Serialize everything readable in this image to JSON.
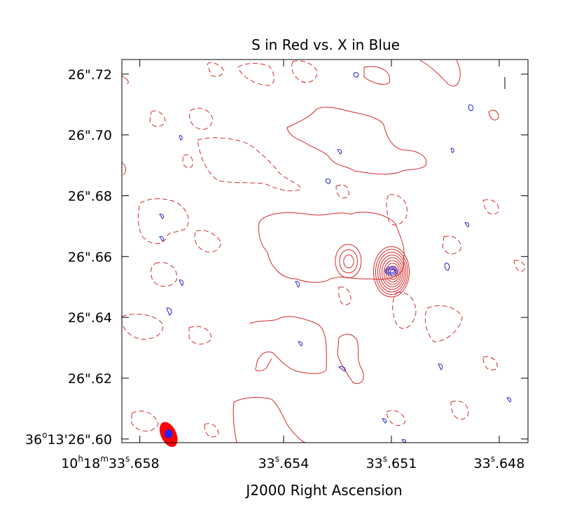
{
  "chart_data": {
    "type": "contour",
    "title": "S in Red vs. X in Blue",
    "xlabel": "J2000 Right Ascension",
    "ylabel": "",
    "x_ticks": [
      {
        "value": 33.658,
        "h": "10",
        "m": "18",
        "s": "33",
        "frac": ".658",
        "full": true
      },
      {
        "value": 33.654,
        "s": "33",
        "frac": ".654"
      },
      {
        "value": 33.651,
        "s": "33",
        "frac": ".651"
      },
      {
        "value": 33.648,
        "s": "33",
        "frac": ".648"
      }
    ],
    "y_ticks": [
      {
        "value": 26.72,
        "label": "26\".72"
      },
      {
        "value": 26.7,
        "label": "26\".70"
      },
      {
        "value": 26.68,
        "label": "26\".68"
      },
      {
        "value": 26.66,
        "label": "26\".66"
      },
      {
        "value": 26.64,
        "label": "26\".64"
      },
      {
        "value": 26.62,
        "label": "26\".62"
      },
      {
        "value": 26.6,
        "d": "36",
        "am": "13",
        "as": "26",
        "frac": "\".60",
        "full": true
      }
    ],
    "x_range": [
      33.6585,
      33.6472
    ],
    "y_range": [
      26.5988,
      26.7248
    ],
    "x_reversed": true,
    "series": [
      {
        "name": "S",
        "color": "#d42a2a"
      },
      {
        "name": "X",
        "color": "#1f1fc8"
      }
    ],
    "sources": [
      {
        "x": 33.6522,
        "y": 26.6585,
        "levels": 3
      },
      {
        "x": 33.651,
        "y": 26.655,
        "levels": 9
      }
    ],
    "beams": [
      {
        "color": "#ff0000",
        "x": 33.6572,
        "y": 26.6015
      },
      {
        "color": "#2222ff",
        "x": 33.6572,
        "y": 26.6015
      }
    ],
    "grid": false
  }
}
